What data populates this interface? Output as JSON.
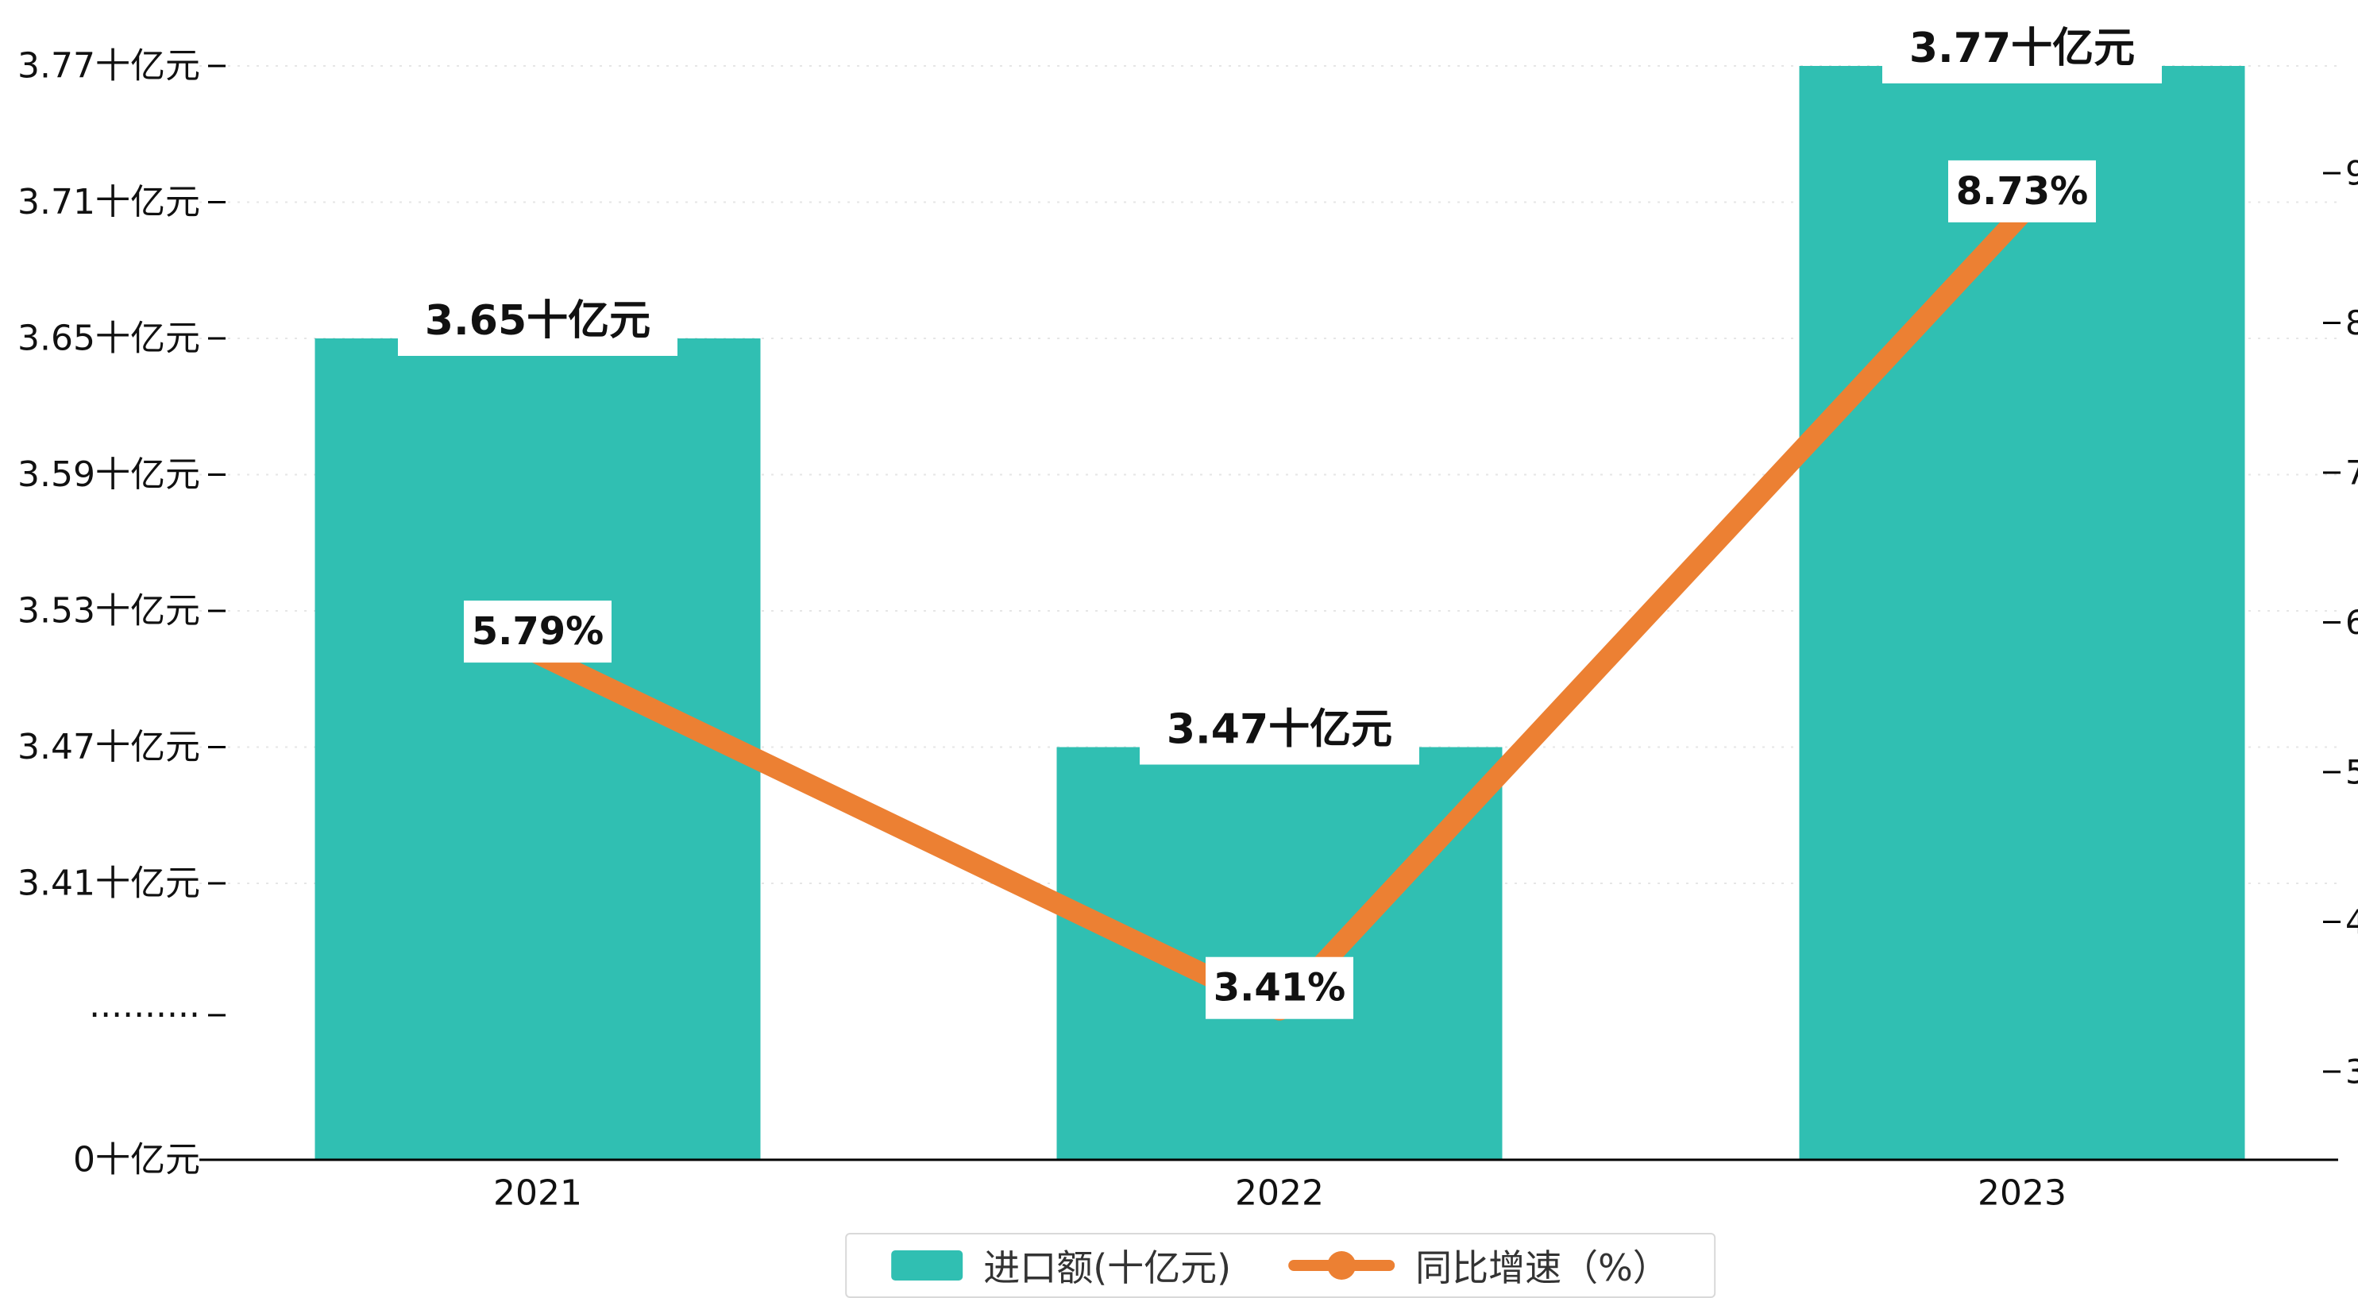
{
  "chart_data": {
    "type": "bar+line",
    "title": "",
    "categories": [
      "2021",
      "2022",
      "2023"
    ],
    "series": [
      {
        "name": "进口额(十亿元)",
        "type": "bar",
        "axis": "left",
        "color": "#30bfb2",
        "values": [
          3.65,
          3.47,
          3.77
        ],
        "labels": [
          "3.65十亿元",
          "3.47十亿元",
          "3.77十亿元"
        ]
      },
      {
        "name": "同比增速（%）",
        "type": "line",
        "axis": "right",
        "color": "#ec8033",
        "values": [
          5.79,
          3.41,
          8.73
        ],
        "labels": [
          "5.79%",
          "3.41%",
          "8.73%"
        ]
      }
    ],
    "left_axis": {
      "unit": "十亿元",
      "axis_break": true,
      "ticks": [
        {
          "label": "3.77十亿元",
          "value": 3.77
        },
        {
          "label": "3.71十亿元",
          "value": 3.71
        },
        {
          "label": "3.65十亿元",
          "value": 3.65
        },
        {
          "label": "3.59十亿元",
          "value": 3.59
        },
        {
          "label": "3.53十亿元",
          "value": 3.53
        },
        {
          "label": "3.47十亿元",
          "value": 3.47
        },
        {
          "label": "3.41十亿元",
          "value": 3.41
        },
        {
          "label": "··········",
          "value": null
        },
        {
          "label": "0十亿元",
          "value": 0
        }
      ]
    },
    "right_axis": {
      "ticks": [
        9,
        8,
        7,
        6,
        5,
        4,
        3
      ],
      "min": 3,
      "max": 9
    },
    "legend": [
      {
        "label": "进口额(十亿元)",
        "marker": "bar",
        "color": "#30bfb2"
      },
      {
        "label": "同比增速（%）",
        "marker": "line",
        "color": "#ec8033"
      }
    ],
    "grid": true,
    "legend_position": "bottom-center",
    "background": "#ffffff"
  }
}
